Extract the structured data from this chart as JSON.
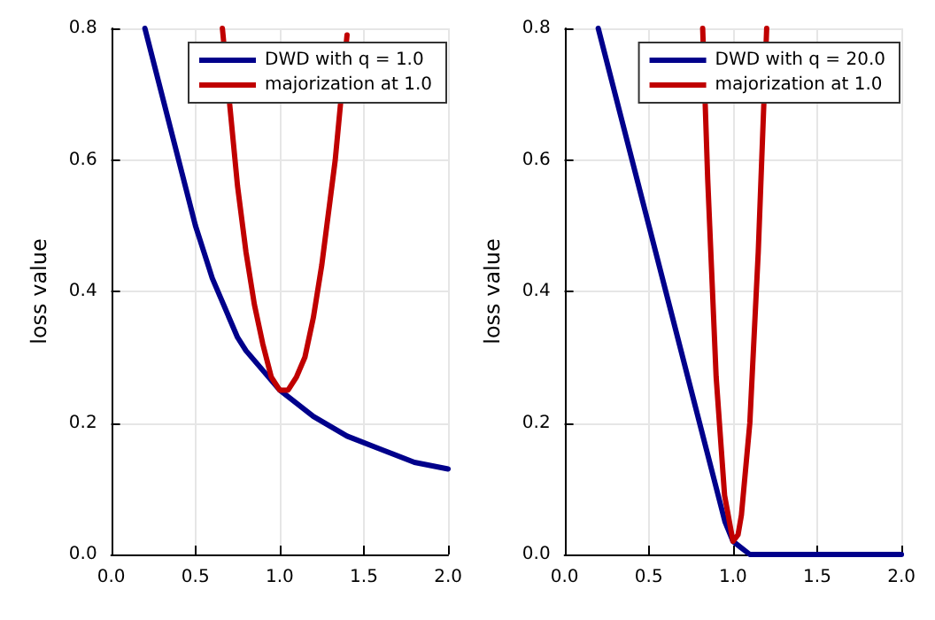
{
  "chart_data": [
    {
      "type": "line",
      "ylabel": "loss value",
      "xlim": [
        0,
        2
      ],
      "ylim": [
        0,
        0.8
      ],
      "xticks": [
        {
          "value": 0,
          "label": "0.0"
        },
        {
          "value": 0.5,
          "label": "0.5"
        },
        {
          "value": 1,
          "label": "1.0"
        },
        {
          "value": 1.5,
          "label": "1.5"
        },
        {
          "value": 2,
          "label": "2.0"
        }
      ],
      "yticks": [
        {
          "value": 0,
          "label": "0.0"
        },
        {
          "value": 0.2,
          "label": "0.2"
        },
        {
          "value": 0.4,
          "label": "0.4"
        },
        {
          "value": 0.6,
          "label": "0.6"
        },
        {
          "value": 0.8,
          "label": "0.8"
        }
      ],
      "grid": true,
      "legend": "top right",
      "marker": "none",
      "line_style": "solid",
      "series": [
        {
          "name": "DWD with q = 1.0",
          "color": "#00008b",
          "x": [
            0.2,
            0.5,
            0.55,
            0.6,
            0.65,
            0.7,
            0.75,
            0.8,
            0.9,
            1.0,
            1.2,
            1.4,
            1.6,
            1.8,
            2.0
          ],
          "values": [
            0.8,
            0.5,
            0.46,
            0.42,
            0.39,
            0.36,
            0.33,
            0.31,
            0.28,
            0.25,
            0.21,
            0.18,
            0.16,
            0.14,
            0.13
          ]
        },
        {
          "name": "majorization at 1.0",
          "color": "#c00000",
          "x": [
            0.66,
            0.75,
            0.8,
            0.85,
            0.9,
            0.95,
            1.0,
            1.05,
            1.1,
            1.15,
            1.2,
            1.25,
            1.3,
            1.33,
            1.4
          ],
          "values": [
            0.8,
            0.56,
            0.46,
            0.38,
            0.32,
            0.27,
            0.25,
            0.25,
            0.27,
            0.3,
            0.36,
            0.44,
            0.54,
            0.6,
            0.79
          ]
        }
      ]
    },
    {
      "type": "line",
      "ylabel": "loss value",
      "xlim": [
        0,
        2
      ],
      "ylim": [
        0,
        0.8
      ],
      "xticks": [
        {
          "value": 0,
          "label": "0.0"
        },
        {
          "value": 0.5,
          "label": "0.5"
        },
        {
          "value": 1,
          "label": "1.0"
        },
        {
          "value": 1.5,
          "label": "1.5"
        },
        {
          "value": 2,
          "label": "2.0"
        }
      ],
      "yticks": [
        {
          "value": 0,
          "label": "0.0"
        },
        {
          "value": 0.2,
          "label": "0.2"
        },
        {
          "value": 0.4,
          "label": "0.4"
        },
        {
          "value": 0.6,
          "label": "0.6"
        },
        {
          "value": 0.8,
          "label": "0.8"
        }
      ],
      "grid": true,
      "legend": "top right",
      "marker": "none",
      "line_style": "solid",
      "series": [
        {
          "name": "DWD with q = 20.0",
          "color": "#00008b",
          "x": [
            0.2,
            0.952,
            1.0,
            1.05,
            1.1,
            1.2,
            1.5,
            2.0
          ],
          "values": [
            0.8,
            0.05,
            0.02,
            0.01,
            0,
            0,
            0,
            0
          ]
        },
        {
          "name": "majorization at 1.0",
          "color": "#c00000",
          "x": [
            0.82,
            0.85,
            0.9,
            0.95,
            1.0,
            1.03,
            1.05,
            1.1,
            1.15,
            1.2
          ],
          "values": [
            0.8,
            0.57,
            0.27,
            0.09,
            0.02,
            0.03,
            0.06,
            0.2,
            0.46,
            0.8
          ]
        }
      ]
    }
  ]
}
